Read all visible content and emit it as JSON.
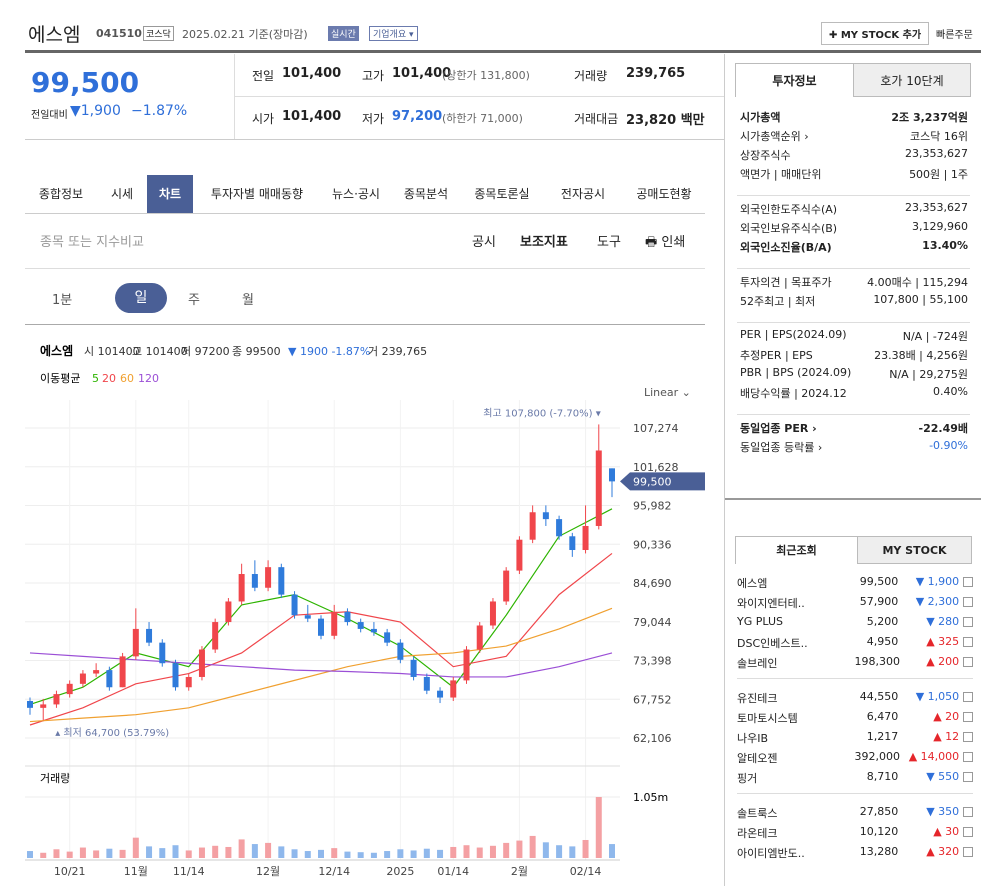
{
  "header": {
    "name": "에스엠",
    "code": "041510",
    "market": "코스닥",
    "date": "2025.02.21 기준(장마감)",
    "badge": "실시간",
    "overview": "기업개요 ▾",
    "mystock": "✚ MY STOCK 추가",
    "quick": "빠른주문"
  },
  "quote": {
    "price": "99,500",
    "change_label": "전일대비",
    "change": "▼1,900",
    "change_pct": "−1.87%",
    "stats": [
      {
        "label": "전일",
        "value": "101,400",
        "note": ""
      },
      {
        "label": "고가",
        "value": "101,400",
        "note": "(상한가 131,800)"
      },
      {
        "label": "거래량",
        "value": "239,765",
        "note": ""
      },
      {
        "label": "시가",
        "value": "101,400",
        "note": ""
      },
      {
        "label": "저가",
        "value": "97,200",
        "note": "(하한가 71,000)"
      },
      {
        "label": "거래대금",
        "value": "23,820 백만",
        "note": ""
      }
    ]
  },
  "tabs": [
    "종합정보",
    "시세",
    "차트",
    "투자자별 매매동향",
    "뉴스·공시",
    "종목분석",
    "종목토론실",
    "전자공시",
    "공매도현황"
  ],
  "toolbar": {
    "search": "종목 또는 지수비교",
    "tools": [
      "공시",
      "보조지표",
      "도구",
      "🖶 인쇄"
    ],
    "periods": [
      "1분",
      "일",
      "주",
      "월"
    ]
  },
  "chart_data": {
    "type": "candlestick",
    "legend_name": "에스엠",
    "legend_items": [
      "시 101400",
      "고 101400",
      "저 97200",
      "종 99500",
      "▼ 1900 -1.87%",
      "거 239,765"
    ],
    "ma_label": "이동평균",
    "scale": "Linear ⌄",
    "up_color": "#f0464b",
    "down_color": "#2f7bdb",
    "max_label": "최고 107,800 (-7.70%) ▾",
    "min_label": "▴ 최저 64,700 (53.79%)",
    "last_label": "99,500",
    "ylim": [
      58900,
      109900
    ],
    "yticks": [
      {
        "value": 62106,
        "label": "62,106"
      },
      {
        "value": 67752,
        "label": "67,752"
      },
      {
        "value": 73398,
        "label": "73,398"
      },
      {
        "value": 79044,
        "label": "79,044"
      },
      {
        "value": 84690,
        "label": "84,690"
      },
      {
        "value": 90336,
        "label": "90,336"
      },
      {
        "value": 95982,
        "label": "95,982"
      },
      {
        "value": 101628,
        "label": "101,628"
      },
      {
        "value": 107274,
        "label": "107,274"
      }
    ],
    "xticks": [
      {
        "value": 3,
        "label": "10/21"
      },
      {
        "value": 8,
        "label": "11월"
      },
      {
        "value": 12,
        "label": "11/14"
      },
      {
        "value": 18,
        "label": "12월"
      },
      {
        "value": 23,
        "label": "12/14"
      },
      {
        "value": 28,
        "label": "2025"
      },
      {
        "value": 32,
        "label": "01/14"
      },
      {
        "value": 37,
        "label": "2월"
      },
      {
        "value": 42,
        "label": "02/14"
      }
    ],
    "candles": [
      [
        67500,
        68000,
        65500,
        66500
      ],
      [
        66500,
        67800,
        64700,
        67000
      ],
      [
        67000,
        69000,
        66500,
        68500
      ],
      [
        68500,
        70500,
        68000,
        70000
      ],
      [
        70000,
        72000,
        69500,
        71500
      ],
      [
        71500,
        73000,
        71000,
        72000
      ],
      [
        72000,
        72500,
        69000,
        69500
      ],
      [
        69500,
        74500,
        69500,
        74000
      ],
      [
        74000,
        81000,
        73500,
        78000
      ],
      [
        78000,
        79000,
        75500,
        76000
      ],
      [
        76000,
        76500,
        72500,
        73000
      ],
      [
        73000,
        73500,
        69000,
        69500
      ],
      [
        69500,
        71500,
        69000,
        71000
      ],
      [
        71000,
        75500,
        70500,
        75000
      ],
      [
        75000,
        79500,
        74500,
        79000
      ],
      [
        79000,
        82500,
        78500,
        82000
      ],
      [
        82000,
        87500,
        81500,
        86000
      ],
      [
        86000,
        88000,
        83500,
        84000
      ],
      [
        84000,
        88000,
        83500,
        87000
      ],
      [
        87000,
        87500,
        82500,
        83000
      ],
      [
        83000,
        83500,
        79500,
        80000
      ],
      [
        80000,
        81500,
        79000,
        79500
      ],
      [
        79500,
        80000,
        76500,
        77000
      ],
      [
        77000,
        81500,
        76500,
        80500
      ],
      [
        80500,
        81000,
        78500,
        79000
      ],
      [
        79000,
        79500,
        77500,
        78000
      ],
      [
        78000,
        79000,
        77000,
        77500
      ],
      [
        77500,
        78000,
        75500,
        76000
      ],
      [
        76000,
        76500,
        73000,
        73500
      ],
      [
        73500,
        74000,
        70500,
        71000
      ],
      [
        71000,
        71500,
        68500,
        69000
      ],
      [
        69000,
        69500,
        67200,
        68000
      ],
      [
        68000,
        71000,
        67500,
        70500
      ],
      [
        70500,
        75500,
        70000,
        75000
      ],
      [
        75000,
        79000,
        74500,
        78500
      ],
      [
        78500,
        82500,
        78000,
        82000
      ],
      [
        82000,
        87000,
        81500,
        86500
      ],
      [
        86500,
        91500,
        86000,
        91000
      ],
      [
        91000,
        96000,
        90500,
        95000
      ],
      [
        95000,
        96000,
        93000,
        94000
      ],
      [
        94000,
        94500,
        91000,
        91500
      ],
      [
        91500,
        92000,
        88500,
        89500
      ],
      [
        89500,
        96000,
        89000,
        93000
      ],
      [
        93000,
        107800,
        92500,
        104000
      ],
      [
        101400,
        101400,
        97200,
        99500
      ]
    ],
    "series": [
      {
        "name": "5",
        "color": "#2db400",
        "x": [
          0,
          4,
          8,
          12,
          16,
          20,
          24,
          28,
          32,
          36,
          40,
          44
        ],
        "values": [
          67000,
          69500,
          74500,
          72500,
          81500,
          83000,
          79500,
          75500,
          69500,
          80000,
          91500,
          95500
        ]
      },
      {
        "name": "20",
        "color": "#f0464b",
        "x": [
          0,
          4,
          8,
          12,
          16,
          20,
          24,
          28,
          32,
          36,
          40,
          44
        ],
        "values": [
          64000,
          66500,
          70000,
          71500,
          74500,
          80000,
          80500,
          79000,
          72500,
          74000,
          83000,
          89000
        ]
      },
      {
        "name": "60",
        "color": "#f0a030",
        "x": [
          0,
          4,
          8,
          12,
          16,
          20,
          24,
          28,
          32,
          36,
          40,
          44
        ],
        "values": [
          64500,
          65000,
          65500,
          66500,
          68500,
          70500,
          72500,
          74000,
          74500,
          75500,
          78000,
          81000
        ]
      },
      {
        "name": "120",
        "color": "#9b4fd6",
        "x": [
          0,
          4,
          8,
          12,
          16,
          20,
          24,
          28,
          32,
          36,
          40,
          44
        ],
        "values": [
          74500,
          74000,
          73500,
          73000,
          72500,
          72000,
          71800,
          71500,
          71000,
          71000,
          72500,
          74500
        ]
      }
    ],
    "volume": {
      "label": "거래량",
      "ylim": [
        0,
        1050000
      ],
      "yticks": [
        {
          "value": 1050000,
          "label": "1.05m"
        }
      ],
      "values": [
        120000,
        90000,
        150000,
        110000,
        180000,
        130000,
        160000,
        140000,
        350000,
        200000,
        170000,
        220000,
        130000,
        180000,
        210000,
        190000,
        320000,
        240000,
        260000,
        200000,
        150000,
        120000,
        140000,
        170000,
        110000,
        100000,
        90000,
        120000,
        150000,
        130000,
        160000,
        140000,
        190000,
        220000,
        180000,
        210000,
        260000,
        300000,
        380000,
        270000,
        220000,
        200000,
        310000,
        1050000,
        239765
      ]
    }
  },
  "info": {
    "tabs": [
      "투자정보",
      "호가 10단계"
    ],
    "groups": [
      [
        {
          "label": "시가총액",
          "value": "2조 3,237억원"
        },
        {
          "label": "시가총액순위 ›",
          "value": "코스닥 16위"
        },
        {
          "label": "상장주식수",
          "value": "23,353,627"
        },
        {
          "label": "액면가 | 매매단위",
          "value": "500원 | 1주"
        }
      ],
      [
        {
          "label": "외국인한도주식수(A)",
          "value": "23,353,627"
        },
        {
          "label": "외국인보유주식수(B)",
          "value": "3,129,960"
        },
        {
          "label": "외국인소진율(B/A)",
          "value": "13.40%"
        }
      ],
      [
        {
          "label": "투자의견 | 목표주가",
          "value": "4.00매수 | 115,294"
        },
        {
          "label": "52주최고 | 최저",
          "value": "107,800 | 55,100"
        }
      ],
      [
        {
          "label": "PER | EPS(2024.09)",
          "value": "N/A | -724원"
        },
        {
          "label": "추정PER | EPS",
          "value": "23.38배 | 4,256원"
        },
        {
          "label": "PBR | BPS (2024.09)",
          "value": "N/A | 29,275원"
        },
        {
          "label": "배당수익률 | 2024.12",
          "value": "0.40%"
        }
      ],
      [
        {
          "label": "동일업종 PER ›",
          "value": "-22.49배"
        },
        {
          "label": "동일업종 등락률 ›",
          "value": "-0.90%"
        }
      ]
    ]
  },
  "recent": {
    "tabs": [
      "최근조회",
      "MY STOCK"
    ],
    "groups": [
      [
        {
          "name": "에스엠",
          "price": "99,500",
          "change": "▼ 1,900",
          "dir": "down"
        },
        {
          "name": "와이지엔터테..",
          "price": "57,900",
          "change": "▼ 2,300",
          "dir": "down"
        },
        {
          "name": "YG PLUS",
          "price": "5,200",
          "change": "▼ 280",
          "dir": "down"
        },
        {
          "name": "DSC인베스트..",
          "price": "4,950",
          "change": "▲ 325",
          "dir": "up"
        },
        {
          "name": "솔브레인",
          "price": "198,300",
          "change": "▲ 200",
          "dir": "up"
        }
      ],
      [
        {
          "name": "유진테크",
          "price": "44,550",
          "change": "▼ 1,050",
          "dir": "down"
        },
        {
          "name": "토마토시스템",
          "price": "6,470",
          "change": "▲ 20",
          "dir": "up"
        },
        {
          "name": "나우IB",
          "price": "1,217",
          "change": "▲ 12",
          "dir": "up"
        },
        {
          "name": "알테오젠",
          "price": "392,000",
          "change": "▲ 14,000",
          "dir": "up"
        },
        {
          "name": "핑거",
          "price": "8,710",
          "change": "▼ 550",
          "dir": "down"
        }
      ],
      [
        {
          "name": "솔트룩스",
          "price": "27,850",
          "change": "▼ 350",
          "dir": "down"
        },
        {
          "name": "라온테크",
          "price": "10,120",
          "change": "▲ 30",
          "dir": "up"
        },
        {
          "name": "아이티엠반도..",
          "price": "13,280",
          "change": "▲ 320",
          "dir": "up"
        }
      ]
    ]
  }
}
